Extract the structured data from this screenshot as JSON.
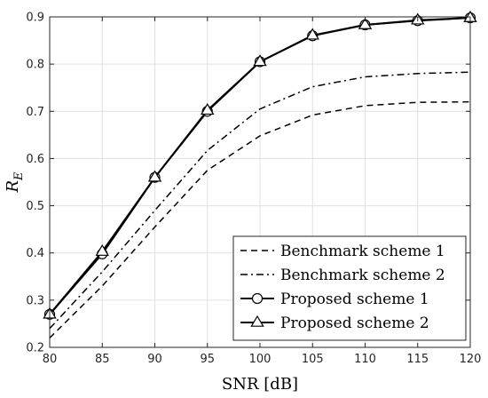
{
  "chart_data": {
    "type": "line",
    "xlabel": "SNR [dB]",
    "ylabel_main": "R",
    "ylabel_sub": "E",
    "xlim": [
      80,
      120
    ],
    "ylim": [
      0.2,
      0.9
    ],
    "xticks": [
      80,
      85,
      90,
      95,
      100,
      105,
      110,
      115,
      120
    ],
    "yticks": [
      0.2,
      0.3,
      0.4,
      0.5,
      0.6,
      0.7,
      0.8,
      0.9
    ],
    "grid": true,
    "legend_position": "bottom-right",
    "x": [
      80,
      85,
      90,
      95,
      100,
      105,
      110,
      115,
      120
    ],
    "series": [
      {
        "name": "Benchmark scheme 1",
        "style": "dashed",
        "marker": "none",
        "values": [
          0.22,
          0.33,
          0.455,
          0.575,
          0.648,
          0.692,
          0.712,
          0.719,
          0.72
        ]
      },
      {
        "name": "Benchmark scheme 2",
        "style": "dashdot",
        "marker": "none",
        "values": [
          0.24,
          0.36,
          0.49,
          0.617,
          0.705,
          0.752,
          0.773,
          0.78,
          0.783
        ]
      },
      {
        "name": "Proposed scheme 1",
        "style": "solid",
        "marker": "circle",
        "values": [
          0.27,
          0.398,
          0.56,
          0.7,
          0.805,
          0.86,
          0.883,
          0.892,
          0.898
        ]
      },
      {
        "name": "Proposed scheme 2",
        "style": "solid",
        "marker": "triangle",
        "values": [
          0.27,
          0.403,
          0.56,
          0.702,
          0.805,
          0.861,
          0.883,
          0.893,
          0.898
        ]
      }
    ]
  }
}
